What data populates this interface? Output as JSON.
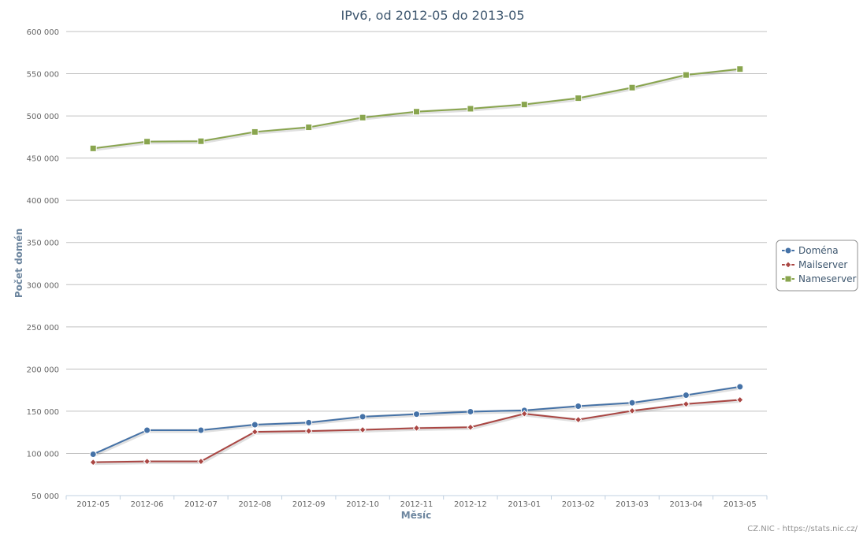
{
  "chart_data": {
    "type": "line",
    "title": "IPv6, od 2012-05 do 2013-05",
    "xlabel": "Měsíc",
    "ylabel": "Počet domén",
    "categories": [
      "2012-05",
      "2012-06",
      "2012-07",
      "2012-08",
      "2012-09",
      "2012-10",
      "2012-11",
      "2012-12",
      "2013-01",
      "2013-02",
      "2013-03",
      "2013-04",
      "2013-05"
    ],
    "ylim": [
      50000,
      600000
    ],
    "yticks": [
      50000,
      100000,
      150000,
      200000,
      250000,
      300000,
      350000,
      400000,
      450000,
      500000,
      550000,
      600000
    ],
    "ytick_labels": [
      "50 000",
      "100 000",
      "150 000",
      "200 000",
      "250 000",
      "300 000",
      "350 000",
      "400 000",
      "450 000",
      "500 000",
      "550 000",
      "600 000"
    ],
    "grid": true,
    "legend_position": "right",
    "series": [
      {
        "name": "Doména",
        "color": "#4572a7",
        "marker": "circle",
        "values": [
          99000,
          127500,
          127500,
          134000,
          136500,
          143500,
          146500,
          149500,
          151000,
          156000,
          160000,
          169000,
          179000
        ]
      },
      {
        "name": "Mailserver",
        "color": "#aa4643",
        "marker": "diamond",
        "values": [
          89500,
          90500,
          90500,
          125500,
          126500,
          128000,
          130000,
          131000,
          147000,
          140000,
          150500,
          158500,
          163500
        ]
      },
      {
        "name": "Nameserver",
        "color": "#89a54e",
        "marker": "square",
        "values": [
          461500,
          469500,
          470000,
          481000,
          486500,
          498000,
          505000,
          508500,
          513500,
          521000,
          533500,
          548500,
          555500
        ]
      }
    ]
  },
  "credit": "CZ.NIC - https://stats.nic.cz/"
}
